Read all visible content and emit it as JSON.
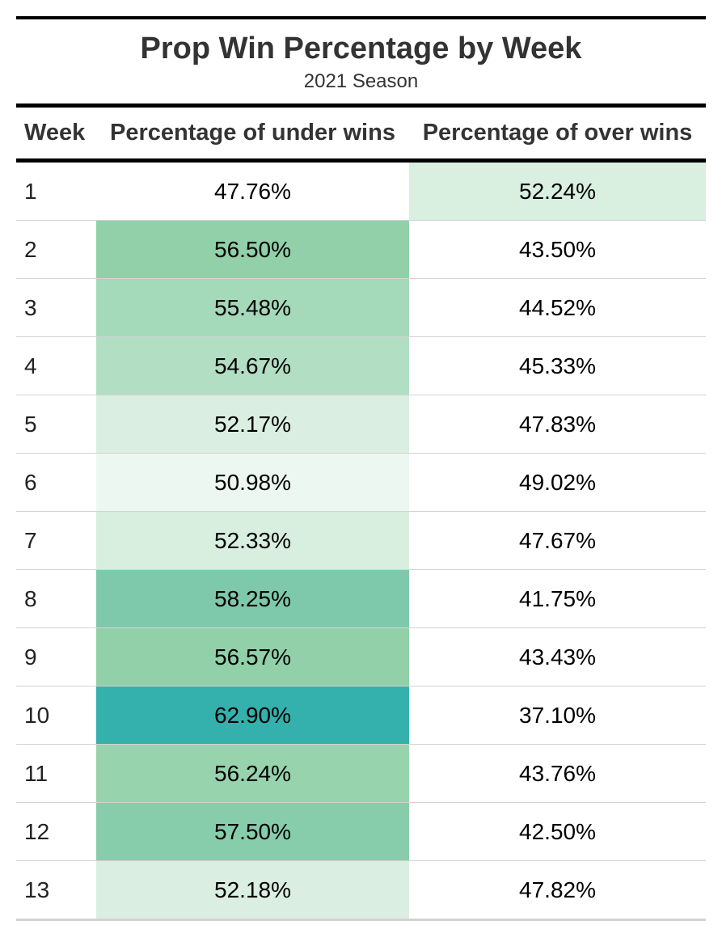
{
  "chart_data": {
    "type": "table",
    "title": "Prop Win Percentage by Week",
    "subtitle": "2021 Season",
    "columns": [
      "Week",
      "Percentage of under wins",
      "Percentage of over wins"
    ],
    "rows": [
      {
        "week": "1",
        "under": "47.76%",
        "over": "52.24%",
        "under_bg": "#ffffff",
        "over_bg": "#d9efe0"
      },
      {
        "week": "2",
        "under": "56.50%",
        "over": "43.50%",
        "under_bg": "#91d0a9",
        "over_bg": "#ffffff"
      },
      {
        "week": "3",
        "under": "55.48%",
        "over": "44.52%",
        "under_bg": "#a4d9b9",
        "over_bg": "#ffffff"
      },
      {
        "week": "4",
        "under": "54.67%",
        "over": "45.33%",
        "under_bg": "#b2dfc4",
        "over_bg": "#ffffff"
      },
      {
        "week": "5",
        "under": "52.17%",
        "over": "47.83%",
        "under_bg": "#daeee1",
        "over_bg": "#ffffff"
      },
      {
        "week": "6",
        "under": "50.98%",
        "over": "49.02%",
        "under_bg": "#edf7f1",
        "over_bg": "#ffffff"
      },
      {
        "week": "7",
        "under": "52.33%",
        "over": "47.67%",
        "under_bg": "#d8eedf",
        "over_bg": "#ffffff"
      },
      {
        "week": "8",
        "under": "58.25%",
        "over": "41.75%",
        "under_bg": "#7ec9ac",
        "over_bg": "#ffffff"
      },
      {
        "week": "9",
        "under": "56.57%",
        "over": "43.43%",
        "under_bg": "#91d0a9",
        "over_bg": "#ffffff"
      },
      {
        "week": "10",
        "under": "62.90%",
        "over": "37.10%",
        "under_bg": "#35b1ad",
        "over_bg": "#ffffff"
      },
      {
        "week": "11",
        "under": "56.24%",
        "over": "43.76%",
        "under_bg": "#97d3ad",
        "over_bg": "#ffffff"
      },
      {
        "week": "12",
        "under": "57.50%",
        "over": "42.50%",
        "under_bg": "#87cdab",
        "over_bg": "#ffffff"
      },
      {
        "week": "13",
        "under": "52.18%",
        "over": "47.82%",
        "under_bg": "#daeee1",
        "over_bg": "#ffffff"
      }
    ]
  }
}
